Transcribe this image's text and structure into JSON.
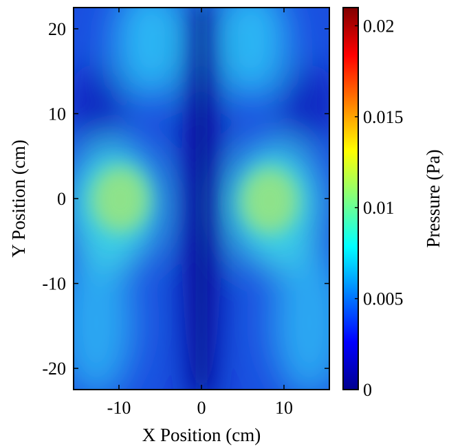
{
  "chart_data": {
    "type": "heatmap",
    "title": "",
    "xlabel": "X Position (cm)",
    "ylabel": "Y Position (cm)",
    "xlim": [
      -15.5,
      15.5
    ],
    "ylim": [
      -22.5,
      22.5
    ],
    "x_ticks": [
      {
        "value": -10,
        "label": "-10"
      },
      {
        "value": 0,
        "label": "0"
      },
      {
        "value": 10,
        "label": "10"
      }
    ],
    "y_ticks": [
      {
        "value": 20,
        "label": "20"
      },
      {
        "value": 10,
        "label": "10"
      },
      {
        "value": 0,
        "label": "0"
      },
      {
        "value": -10,
        "label": "-10"
      },
      {
        "value": -20,
        "label": "-20"
      }
    ],
    "colorbar": {
      "label": "Pressure (Pa)",
      "range": [
        0,
        0.021
      ],
      "colormap": "jet",
      "ticks": [
        {
          "value": 0,
          "label": "0"
        },
        {
          "value": 0.005,
          "label": "0.005"
        },
        {
          "value": 0.01,
          "label": "0.01"
        },
        {
          "value": 0.015,
          "label": "0.015"
        },
        {
          "value": 0.02,
          "label": "0.02"
        }
      ]
    },
    "field_features": [
      {
        "x": -9,
        "y": 0,
        "value": 0.0105,
        "description": "left pressure peak"
      },
      {
        "x": 8.5,
        "y": 0,
        "value": 0.0105,
        "description": "right pressure peak"
      },
      {
        "x": 0,
        "y": 0,
        "value": 0.001,
        "description": "central low-pressure band"
      },
      {
        "x": -6,
        "y": 20,
        "value": 0.006,
        "description": "upper-left lobe"
      },
      {
        "x": 6,
        "y": 20,
        "value": 0.006,
        "description": "upper-right lobe"
      },
      {
        "x": -10,
        "y": -17,
        "value": 0.005,
        "description": "lower-left lobe"
      },
      {
        "x": 10,
        "y": -17,
        "value": 0.005,
        "description": "lower-right lobe"
      }
    ],
    "grid": false,
    "legend": "colorbar-right"
  }
}
